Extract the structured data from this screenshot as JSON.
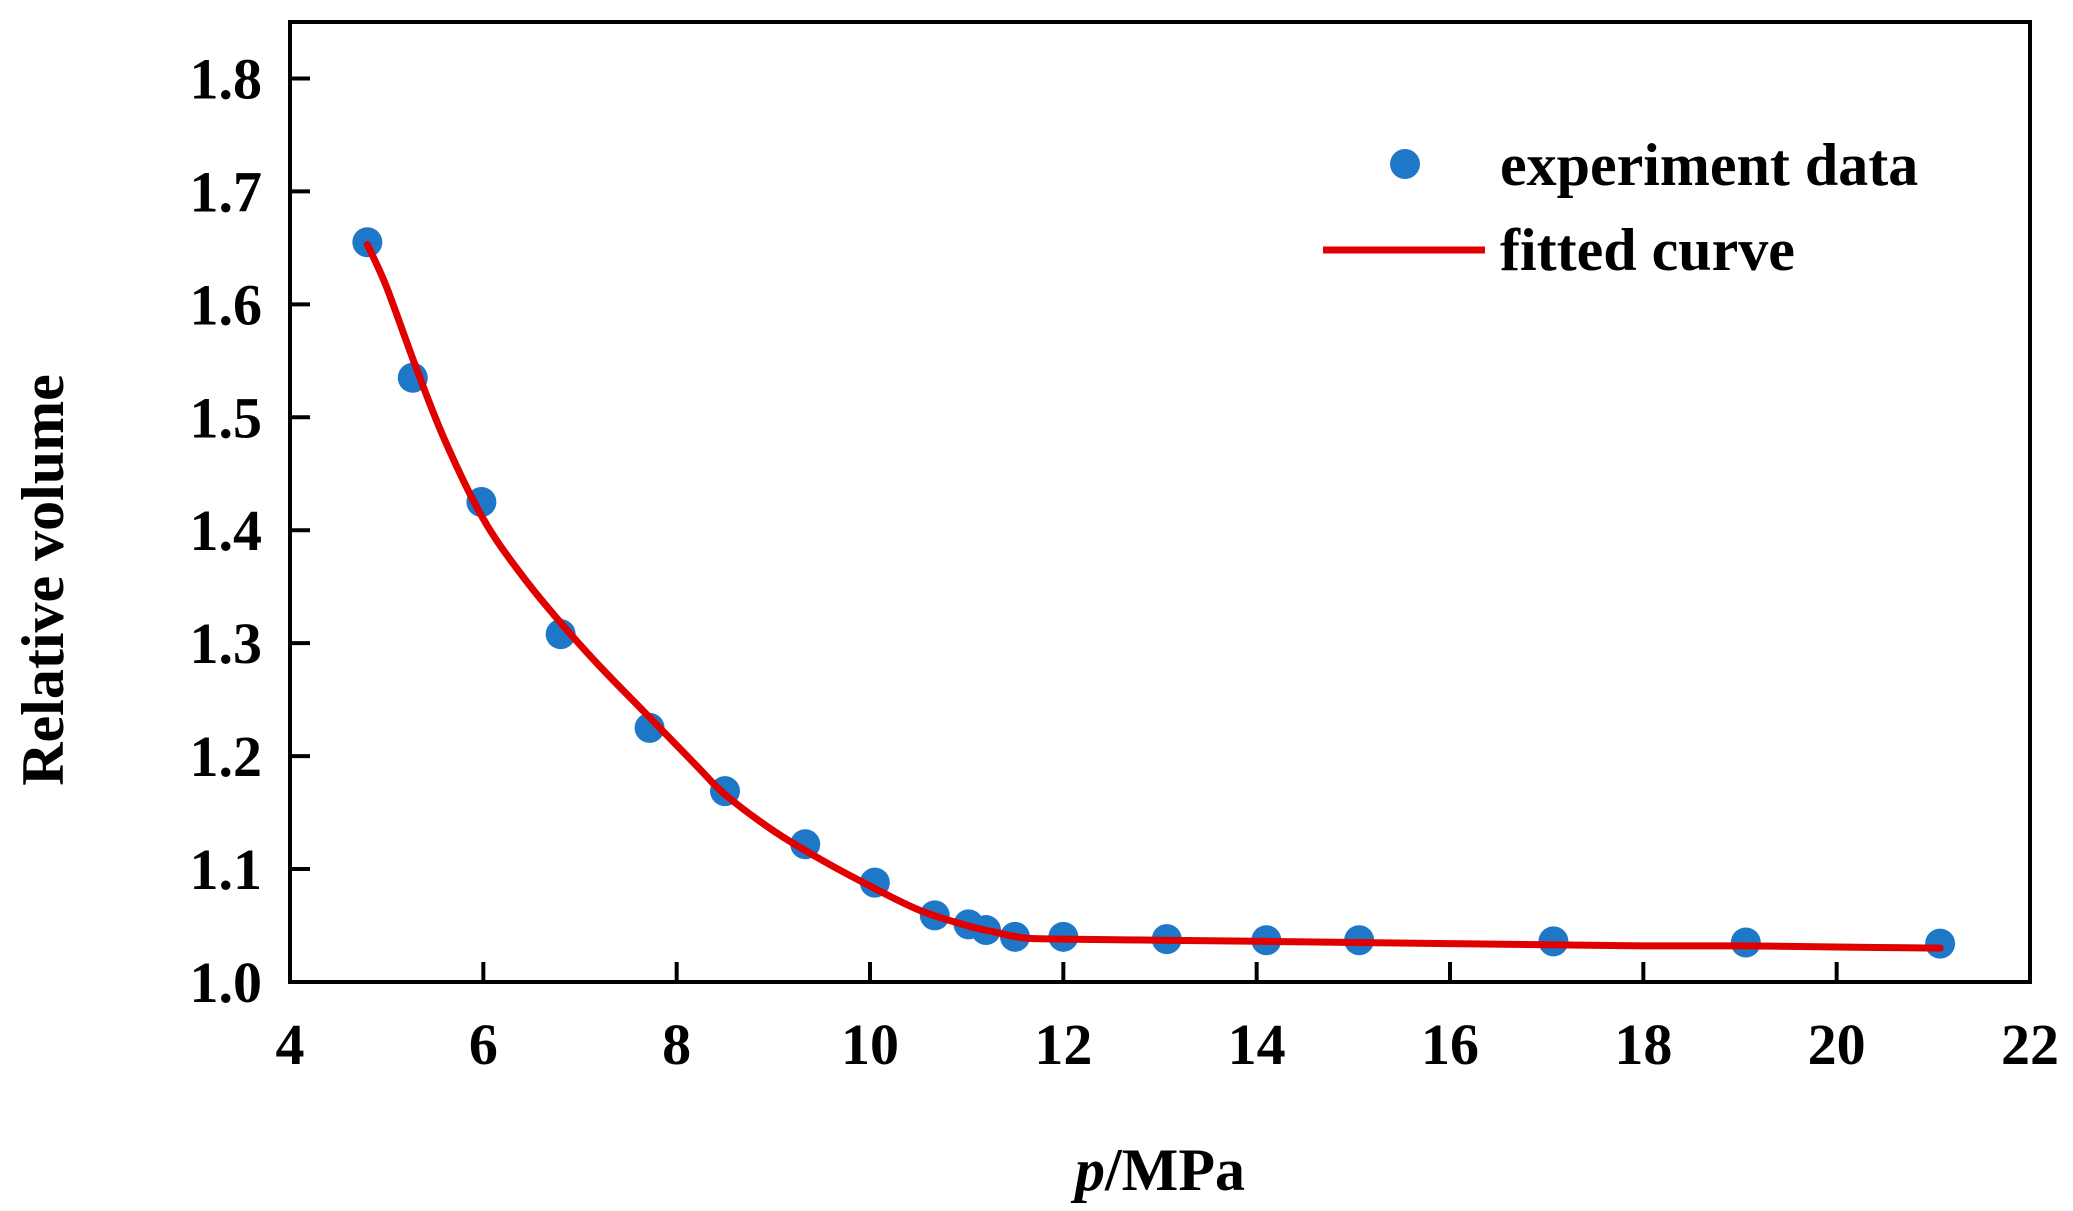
{
  "chart_data": {
    "type": "scatter",
    "title": "",
    "xlabel_var": "p",
    "xlabel_unit": "/MPa",
    "ylabel": "Relative volume",
    "xlim": [
      4,
      22
    ],
    "ylim": [
      1.0,
      1.85
    ],
    "x_ticks": [
      "4",
      "6",
      "8",
      "10",
      "12",
      "14",
      "16",
      "18",
      "20",
      "22"
    ],
    "y_ticks": [
      "1.0",
      "1.1",
      "1.2",
      "1.3",
      "1.4",
      "1.5",
      "1.6",
      "1.7",
      "1.8"
    ],
    "grid": false,
    "legend_position": "top-right",
    "series": [
      {
        "name": "experiment data",
        "kind": "markers",
        "color": "#1f77c8",
        "x": [
          4.8,
          5.27,
          5.98,
          6.8,
          7.72,
          8.5,
          9.33,
          10.05,
          10.67,
          11.02,
          11.2,
          11.5,
          12.0,
          13.07,
          14.1,
          15.06,
          17.07,
          19.06,
          21.07
        ],
        "y": [
          1.655,
          1.535,
          1.425,
          1.308,
          1.225,
          1.169,
          1.122,
          1.088,
          1.059,
          1.051,
          1.046,
          1.04,
          1.04,
          1.038,
          1.037,
          1.037,
          1.036,
          1.035,
          1.034
        ]
      },
      {
        "name": "fitted curve",
        "kind": "line",
        "color": "#e00000",
        "x": [
          4.8,
          5.0,
          5.3,
          5.6,
          6.0,
          6.4,
          6.8,
          7.2,
          7.7,
          8.2,
          8.5,
          9.0,
          9.5,
          10.0,
          10.5,
          11.0,
          11.3,
          11.6,
          12.0,
          13.0,
          14.0,
          15.0,
          16.0,
          17.0,
          18.0,
          19.0,
          20.0,
          21.07
        ],
        "y": [
          1.653,
          1.615,
          1.545,
          1.48,
          1.41,
          1.36,
          1.318,
          1.28,
          1.236,
          1.192,
          1.166,
          1.134,
          1.108,
          1.085,
          1.064,
          1.05,
          1.044,
          1.039,
          1.038,
          1.037,
          1.036,
          1.035,
          1.034,
          1.033,
          1.032,
          1.032,
          1.031,
          1.03
        ]
      }
    ]
  }
}
